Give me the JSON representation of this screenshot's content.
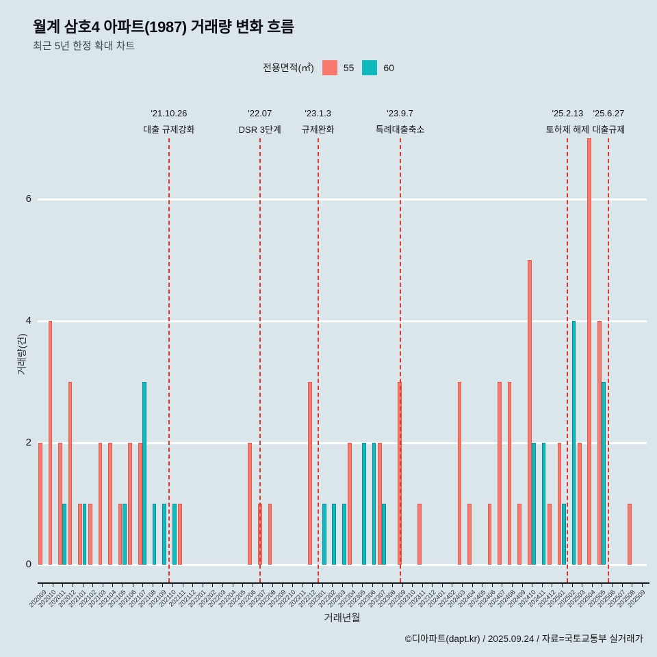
{
  "page": {
    "title": "월계 삼호4 아파트(1987) 거래량 변화 흐름",
    "subtitle": "최근 5년 한정 확대 차트",
    "footer": "©디아파트(dapt.kr) / 2025.09.24 / 자료=국토교통부 실거래가"
  },
  "legend": {
    "label": "전용면적(㎡)",
    "items": [
      {
        "name": "55",
        "color": "#f8796d"
      },
      {
        "name": "60",
        "color": "#10b9be"
      }
    ]
  },
  "colors": {
    "background": "#dbe6eb",
    "grid": "#ffffff",
    "event_line": "#e8312a"
  },
  "chart_data": {
    "type": "bar",
    "title": "월계 삼호4 아파트(1987) 거래량 변화 흐름",
    "xlabel": "거래년월",
    "ylabel": "거래량(건)",
    "ylim": [
      0,
      7.7
    ],
    "yticks": [
      0,
      2,
      4,
      6
    ],
    "grid": true,
    "legend_position": "top",
    "categories": [
      "202009",
      "202010",
      "202011",
      "202012",
      "202101",
      "202102",
      "202103",
      "202104",
      "202105",
      "202106",
      "202107",
      "202108",
      "202109",
      "202110",
      "202111",
      "202112",
      "202201",
      "202202",
      "202203",
      "202204",
      "202205",
      "202206",
      "202207",
      "202208",
      "202209",
      "202210",
      "202211",
      "202212",
      "202301",
      "202302",
      "202303",
      "202304",
      "202305",
      "202306",
      "202307",
      "202308",
      "202309",
      "202310",
      "202311",
      "202312",
      "202401",
      "202402",
      "202403",
      "202404",
      "202405",
      "202406",
      "202407",
      "202408",
      "202409",
      "202410",
      "202411",
      "202412",
      "202501",
      "202502",
      "202503",
      "202504",
      "202505",
      "202506",
      "202507",
      "202508",
      "202509"
    ],
    "series": [
      {
        "name": "55",
        "color": "#f8796d",
        "border": "#e05a50",
        "values": [
          2,
          4,
          2,
          3,
          1,
          1,
          2,
          2,
          1,
          2,
          2,
          0,
          0,
          0,
          1,
          0,
          0,
          0,
          0,
          0,
          0,
          2,
          1,
          1,
          0,
          0,
          0,
          3,
          0,
          0,
          0,
          2,
          0,
          0,
          2,
          0,
          3,
          0,
          1,
          0,
          0,
          0,
          3,
          1,
          0,
          1,
          3,
          3,
          1,
          5,
          0,
          1,
          2,
          0,
          2,
          7,
          4,
          0,
          0,
          1,
          0
        ]
      },
      {
        "name": "60",
        "color": "#10b9be",
        "border": "#089096",
        "values": [
          0,
          0,
          1,
          0,
          1,
          0,
          0,
          0,
          1,
          0,
          3,
          1,
          1,
          1,
          0,
          0,
          0,
          0,
          0,
          0,
          0,
          0,
          0,
          0,
          0,
          0,
          0,
          0,
          1,
          1,
          1,
          0,
          2,
          2,
          1,
          0,
          0,
          0,
          0,
          0,
          0,
          0,
          0,
          0,
          0,
          0,
          0,
          0,
          0,
          2,
          2,
          0,
          1,
          4,
          0,
          0,
          3,
          0,
          0,
          0,
          0
        ]
      }
    ],
    "events": [
      {
        "date": "'21.10.26",
        "label": "대출 규제강화",
        "pos": 12.65
      },
      {
        "date": "'22.07",
        "label": "DSR 3단계",
        "pos": 21.76
      },
      {
        "date": "'23.1.3",
        "label": "규제완화",
        "pos": 27.58
      },
      {
        "date": "'23.9.7",
        "label": "특례대출축소",
        "pos": 35.8
      },
      {
        "date": "'25.2.13",
        "label": "토허제 해제",
        "pos": 52.58
      },
      {
        "date": "'25.6.27",
        "label": "대출규제",
        "pos": 56.69
      }
    ]
  }
}
